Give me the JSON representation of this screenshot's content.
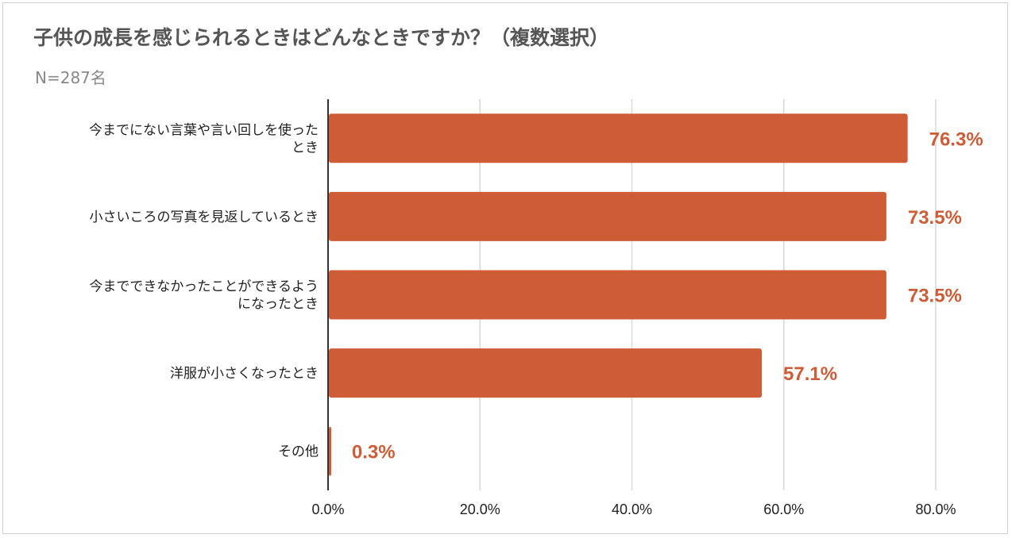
{
  "chart_data": {
    "type": "bar",
    "orientation": "horizontal",
    "title": "子供の成長を感じられるときはどんなときですか？（複数選択）",
    "subtitle": "N=287名",
    "categories": [
      [
        "今までにない言葉や言い回しを使った",
        "とき"
      ],
      [
        "小さいころの写真を見返しているとき"
      ],
      [
        "今までできなかったことができるよう",
        "になったとき"
      ],
      [
        "洋服が小さくなったとき"
      ],
      [
        "その他"
      ]
    ],
    "values": [
      76.3,
      73.5,
      73.5,
      57.1,
      0.3
    ],
    "value_labels": [
      "76.3%",
      "73.5%",
      "73.5%",
      "57.1%",
      "0.3%"
    ],
    "xlim": [
      0,
      80
    ],
    "x_ticks": [
      0,
      20,
      40,
      60,
      80
    ],
    "x_tick_labels": [
      "0.0%",
      "20.0%",
      "40.0%",
      "60.0%",
      "80.0%"
    ],
    "grid": true,
    "legend": "none",
    "colors": {
      "bar": "#cd5c37",
      "label": "#cd5c37",
      "grid": "#d9d9d9",
      "axis": "#333333"
    }
  }
}
